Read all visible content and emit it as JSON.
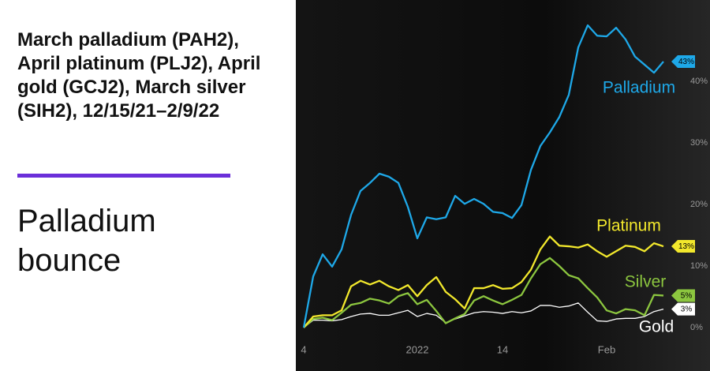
{
  "chart_data": {
    "type": "line",
    "title": "March palladium (PAH2), April platinum (PLJ2), April gold (GCJ2), March silver (SIH2), 12/15/21–2/9/22",
    "subtitle": "Palladium bounce",
    "x": [
      0,
      1,
      2,
      3,
      4,
      5,
      6,
      7,
      8,
      9,
      10,
      11,
      12,
      13,
      14,
      15,
      16,
      17,
      18,
      19,
      20,
      21,
      22,
      23,
      24,
      25,
      26,
      27,
      28,
      29,
      30,
      31,
      32,
      33,
      34,
      35,
      36,
      37,
      38
    ],
    "xlim": [
      0,
      38.5
    ],
    "xticks": [
      {
        "value": 0,
        "label": "4"
      },
      {
        "value": 12,
        "label": "2022"
      },
      {
        "value": 21,
        "label": "14"
      },
      {
        "value": 32,
        "label": "Feb"
      }
    ],
    "ylim": [
      -1,
      50
    ],
    "yticks": [
      {
        "value": 0,
        "label": "0%"
      },
      {
        "value": 10,
        "label": "10%"
      },
      {
        "value": 20,
        "label": "20%"
      },
      {
        "value": 30,
        "label": "30%"
      },
      {
        "value": 40,
        "label": "40%"
      }
    ],
    "grid": false,
    "series": [
      {
        "name": "Palladium",
        "color": "#1ea8e8",
        "last_label": "43%",
        "values": [
          0,
          8.3,
          11.9,
          9.9,
          12.7,
          18.3,
          22.2,
          23.5,
          25,
          24.5,
          23.5,
          19.6,
          14.5,
          17.9,
          17.6,
          17.9,
          21.4,
          20.1,
          20.9,
          20.1,
          18.8,
          18.6,
          17.8,
          19.9,
          25.6,
          29.5,
          31.7,
          34.2,
          37.8,
          45.5,
          49.1,
          47.4,
          47.3,
          48.7,
          46.8,
          44,
          42.7,
          41.4,
          43.2
        ]
      },
      {
        "name": "Platinum",
        "color": "#f2e82c",
        "last_label": "13%",
        "values": [
          0,
          1.8,
          2,
          2,
          2.8,
          6.7,
          7.6,
          7,
          7.6,
          6.7,
          6.1,
          6.9,
          5.1,
          6.9,
          8.2,
          5.8,
          4.6,
          3.1,
          6.4,
          6.4,
          6.9,
          6.3,
          6.4,
          7.4,
          9.4,
          12.7,
          14.8,
          13.3,
          13.2,
          13,
          13.5,
          12.4,
          11.5,
          12.4,
          13.3,
          13.1,
          12.4,
          13.7,
          13.2
        ]
      },
      {
        "name": "Silver",
        "color": "#8cc63f",
        "last_label": "5%",
        "values": [
          0,
          1.4,
          1.6,
          1.2,
          2.4,
          3.7,
          4,
          4.7,
          4.4,
          3.9,
          5.1,
          5.6,
          3.8,
          4.5,
          2.7,
          0.7,
          1.5,
          2.2,
          4.4,
          5.1,
          4.4,
          3.8,
          4.5,
          5.3,
          8,
          10.3,
          11.3,
          10,
          8.5,
          8,
          6.4,
          4.9,
          2.8,
          2.3,
          3,
          2.8,
          2,
          5.3,
          5.2
        ]
      },
      {
        "name": "Gold",
        "color": "#ffffff",
        "last_label": "3%",
        "values": [
          0,
          1.2,
          1.2,
          1.1,
          1.3,
          1.8,
          2.2,
          2.3,
          2,
          2,
          2.4,
          2.8,
          1.8,
          2.3,
          2,
          0.8,
          1.4,
          1.9,
          2.4,
          2.6,
          2.5,
          2.3,
          2.6,
          2.4,
          2.7,
          3.6,
          3.6,
          3.3,
          3.5,
          4,
          2.5,
          1.1,
          1,
          1.4,
          1.5,
          1.5,
          1.8,
          2.6,
          3
        ]
      }
    ]
  }
}
